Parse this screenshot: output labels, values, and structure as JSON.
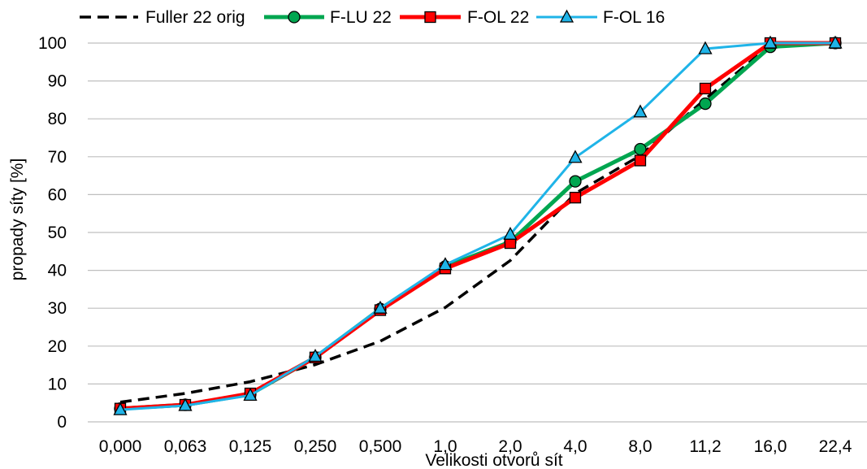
{
  "chart_data": {
    "type": "line",
    "title": "",
    "xlabel": "Velikosti otvorů sít",
    "ylabel": "propady síty [%]",
    "categories": [
      "0,000",
      "0,063",
      "0,125",
      "0,250",
      "0,500",
      "1,0",
      "2,0",
      "4,0",
      "8,0",
      "11,2",
      "16,0",
      "22,4"
    ],
    "ylim": [
      0,
      100
    ],
    "yticks": [
      0,
      10,
      20,
      30,
      40,
      50,
      60,
      70,
      80,
      90,
      100
    ],
    "grid": true,
    "legend_position": "top",
    "series": [
      {
        "name": "Fuller 22 orig",
        "values": [
          5.2,
          7.5,
          10.6,
          15.1,
          21.3,
          30.2,
          42.6,
          60.3,
          70.3,
          85.2,
          99.5,
          100
        ],
        "color": "#000000",
        "style": "dashed",
        "marker": "none"
      },
      {
        "name": "F-LU 22",
        "values": [
          3.5,
          4.5,
          7.3,
          17.0,
          29.8,
          41.0,
          47.5,
          63.5,
          72.0,
          84.0,
          99.0,
          100
        ],
        "color": "#00a650",
        "style": "solid",
        "marker": "circle"
      },
      {
        "name": "F-OL 22",
        "values": [
          3.5,
          4.5,
          7.5,
          17.0,
          29.5,
          40.5,
          47.2,
          59.2,
          69.0,
          88.0,
          100,
          100
        ],
        "color": "#ff0000",
        "style": "solid",
        "marker": "square"
      },
      {
        "name": "F-OL 16",
        "values": [
          3.2,
          4.3,
          7.0,
          17.3,
          30.0,
          41.5,
          49.5,
          69.8,
          81.8,
          98.5,
          100,
          100
        ],
        "color": "#1fb4e8",
        "style": "solid",
        "marker": "triangle"
      }
    ]
  }
}
